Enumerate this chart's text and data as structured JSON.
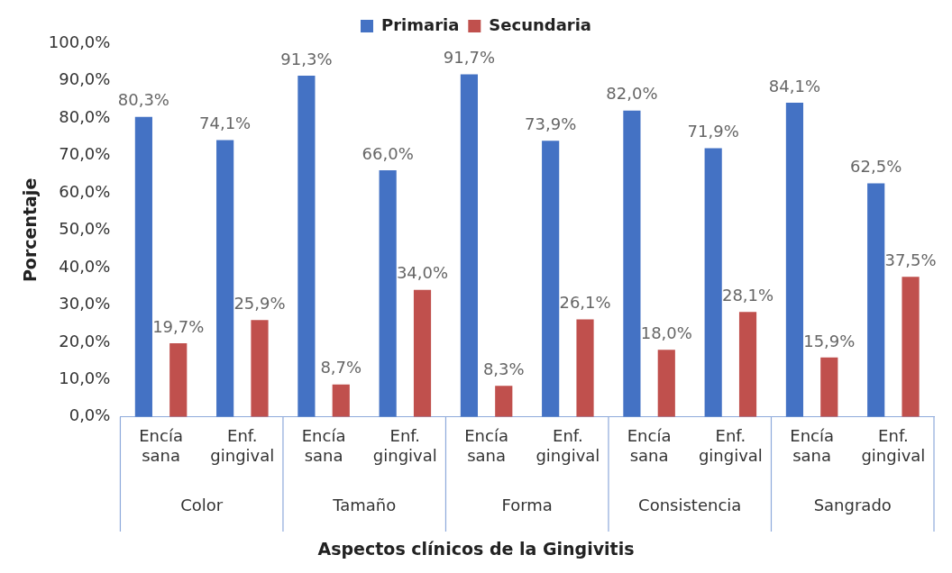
{
  "chart_data": {
    "type": "bar",
    "categories": [
      "Encía sana",
      "Enf. gingival",
      "Encía sana",
      "Enf. gingival",
      "Encía sana",
      "Enf. gingival",
      "Encía sana",
      "Enf. gingival",
      "Encía sana",
      "Enf. gingival"
    ],
    "series": [
      {
        "name": "Primaria",
        "color": "#4472c4",
        "values": [
          80.3,
          74.1,
          91.3,
          66.0,
          91.7,
          73.9,
          82.0,
          71.9,
          84.1,
          62.5
        ],
        "value_labels": [
          "80,3%",
          "74,1%",
          "91,3%",
          "66,0%",
          "91,7%",
          "73,9%",
          "82,0%",
          "71,9%",
          "84,1%",
          "62,5%"
        ]
      },
      {
        "name": "Secundaria",
        "color": "#c0504d",
        "values": [
          19.7,
          25.9,
          8.7,
          34.0,
          8.3,
          26.1,
          18.0,
          28.1,
          15.9,
          37.5
        ],
        "value_labels": [
          "19,7%",
          "25,9%",
          "8,7%",
          "34,0%",
          "8,3%",
          "26,1%",
          "18,0%",
          "28,1%",
          "15,9%",
          "37,5%"
        ]
      }
    ],
    "annotations": [
      "Color",
      "Tamaño",
      "Forma",
      "Consistencia",
      "Sangrado"
    ],
    "xlabel": "Aspectos clínicos de la Gingivitis",
    "ylabel": "Porcentaje",
    "ylim": [
      0,
      100
    ],
    "yticks": [
      {
        "value": 0,
        "label": "0,0%"
      },
      {
        "value": 10,
        "label": "10,0%"
      },
      {
        "value": 20,
        "label": "20,0%"
      },
      {
        "value": 30,
        "label": "30,0%"
      },
      {
        "value": 40,
        "label": "40,0%"
      },
      {
        "value": 50,
        "label": "50,0%"
      },
      {
        "value": 60,
        "label": "60,0%"
      },
      {
        "value": 70,
        "label": "70,0%"
      },
      {
        "value": 80,
        "label": "80,0%"
      },
      {
        "value": 90,
        "label": "90,0%"
      },
      {
        "value": 100,
        "label": "100,0%"
      }
    ],
    "grid": false,
    "legend": "top"
  }
}
